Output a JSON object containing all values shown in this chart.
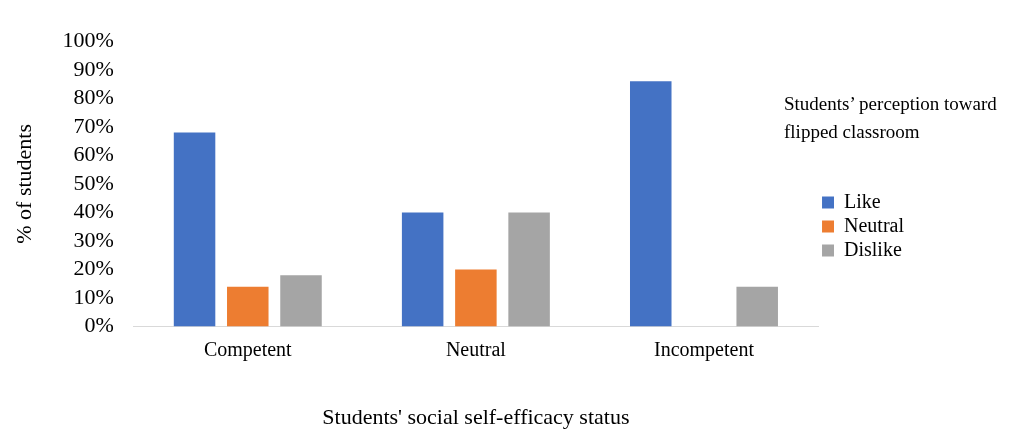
{
  "chart_data": {
    "type": "bar",
    "xlabel": "Students' social self-efficacy status",
    "ylabel": "% of students",
    "legend_title": "Students’ perception toward flipped classroom",
    "categories": [
      "Competent",
      "Neutral",
      "Incompetent"
    ],
    "series": [
      {
        "name": "Like",
        "color": "#4472c4",
        "values": [
          68,
          40,
          86
        ]
      },
      {
        "name": "Neutral",
        "color": "#ed7d31",
        "values": [
          14,
          20,
          0
        ]
      },
      {
        "name": "Dislike",
        "color": "#a5a5a5",
        "values": [
          18,
          40,
          14
        ]
      }
    ],
    "ylim": [
      0,
      100
    ],
    "yticks": [
      {
        "value": 0,
        "label": "0%"
      },
      {
        "value": 10,
        "label": "10%"
      },
      {
        "value": 20,
        "label": "20%"
      },
      {
        "value": 30,
        "label": "30%"
      },
      {
        "value": 40,
        "label": "40%"
      },
      {
        "value": 50,
        "label": "50%"
      },
      {
        "value": 60,
        "label": "60%"
      },
      {
        "value": 70,
        "label": "70%"
      },
      {
        "value": 80,
        "label": "80%"
      },
      {
        "value": 90,
        "label": "90%"
      },
      {
        "value": 100,
        "label": "100%"
      }
    ],
    "grid": false,
    "legend": "right"
  }
}
